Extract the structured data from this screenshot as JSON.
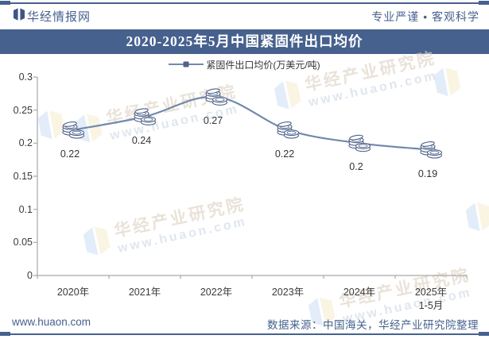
{
  "header": {
    "brand": "华经情报网",
    "slogan": "专业严谨 • 客观科学"
  },
  "title_bar": {
    "title": "2020-2025年5月中国紧固件出口均价"
  },
  "chart_data": {
    "type": "line",
    "title": "2020-2025年5月中国紧固件出口均价",
    "legend": [
      "紧固件出口均价(万美元/吨)"
    ],
    "legend_position": "top",
    "categories": [
      "2020年",
      "2021年",
      "2022年",
      "2023年",
      "2024年",
      "2025年\n1-5月"
    ],
    "series": [
      {
        "name": "紧固件出口均价(万美元/吨)",
        "values": [
          0.22,
          0.24,
          0.27,
          0.22,
          0.2,
          0.19
        ]
      }
    ],
    "data_labels": [
      "0.22",
      "0.24",
      "0.27",
      "0.22",
      "0.2",
      "0.19"
    ],
    "xlabel": "",
    "ylabel": "",
    "ylim": [
      0,
      0.3
    ],
    "yticks": [
      0,
      0.05,
      0.1,
      0.15,
      0.2,
      0.25,
      0.3
    ],
    "grid": false,
    "marker": "coin-stack-icon",
    "smooth": true
  },
  "watermark": {
    "line1": "华经产业研究院",
    "line2": "www.huaon.com"
  },
  "footer": {
    "site": "www.huaon.com",
    "source": "数据来源：中国海关，华经产业研究院整理"
  },
  "colors": {
    "brand_blue": "#46618e",
    "line_blue": "#7289ac",
    "marker_stroke": "#4d6187",
    "axis_gray": "#a6a6a6",
    "label_dark": "#333333",
    "watermark_warm": "#dccfbf",
    "watermark_cool": "#ccd6e3"
  }
}
